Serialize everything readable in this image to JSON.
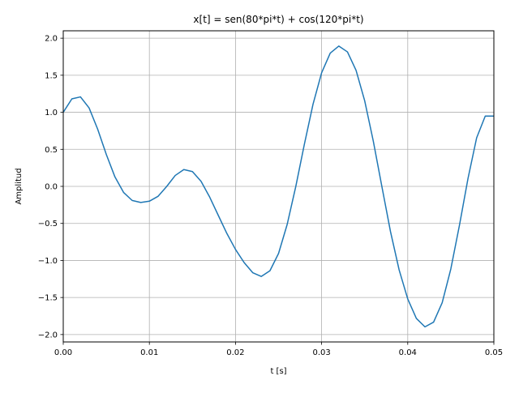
{
  "chart_data": {
    "type": "line",
    "title": "x[t] = sen(80*pi*t) + cos(120*pi*t)",
    "xlabel": "t [s]",
    "ylabel": "Amplitud",
    "xlim": [
      0,
      0.05
    ],
    "ylim": [
      -2.1,
      2.1
    ],
    "grid": true,
    "line_color": "#1f77b4",
    "x_ticks": [
      0.0,
      0.01,
      0.02,
      0.03,
      0.04,
      0.05
    ],
    "x_tick_labels": [
      "0.00",
      "0.01",
      "0.02",
      "0.03",
      "0.04",
      "0.05"
    ],
    "y_ticks": [
      -2.0,
      -1.5,
      -1.0,
      -0.5,
      0.0,
      0.5,
      1.0,
      1.5,
      2.0
    ],
    "y_tick_labels": [
      "−2.0",
      "−1.5",
      "−1.0",
      "−0.5",
      "0.0",
      "0.5",
      "1.0",
      "1.5",
      "2.0"
    ],
    "series": [
      {
        "x": [
          0.0,
          0.001,
          0.002,
          0.003,
          0.004,
          0.005,
          0.006,
          0.007,
          0.008,
          0.009,
          0.01,
          0.011,
          0.012,
          0.013,
          0.014,
          0.015,
          0.016,
          0.017,
          0.018,
          0.019,
          0.02,
          0.021,
          0.022,
          0.023,
          0.024,
          0.025,
          0.026,
          0.027,
          0.028,
          0.029,
          0.03,
          0.031,
          0.032,
          0.033,
          0.034,
          0.035,
          0.036,
          0.037,
          0.038,
          0.039,
          0.04,
          0.041,
          0.042,
          0.043,
          0.044,
          0.045,
          0.046,
          0.047,
          0.048,
          0.049,
          0.05
        ],
        "values": [
          1.0,
          1.181,
          1.208,
          1.059,
          0.771,
          0.431,
          0.128,
          -0.081,
          -0.19,
          -0.217,
          -0.2,
          -0.135,
          -0.003,
          0.147,
          0.227,
          0.2,
          0.068,
          -0.144,
          -0.391,
          -0.636,
          -0.851,
          -1.028,
          -1.165,
          -1.216,
          -1.139,
          -0.905,
          -0.514,
          -0.002,
          0.57,
          1.108,
          1.533,
          1.799,
          1.894,
          1.815,
          1.566,
          1.156,
          0.611,
          -0.004,
          -0.612,
          -1.127,
          -1.52,
          -1.782,
          -1.896,
          -1.833,
          -1.57,
          -1.116,
          -0.528,
          0.108,
          0.655,
          0.949,
          0.949
        ]
      }
    ]
  }
}
